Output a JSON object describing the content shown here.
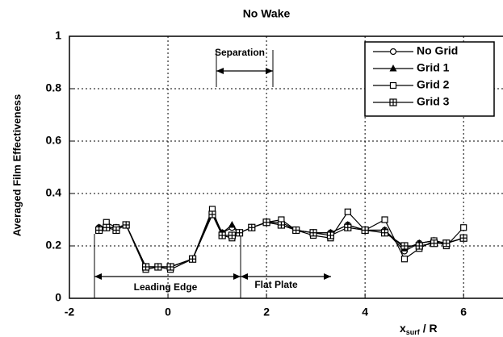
{
  "chart_data": {
    "type": "line",
    "title": "No Wake",
    "ylabel": "Averaged Film Effectiveness",
    "xlabel": {
      "main": "x",
      "sub": "surf",
      "rest": " / R"
    },
    "x": [
      -1.4,
      -1.25,
      -1.05,
      -0.85,
      -0.45,
      -0.2,
      0.05,
      0.5,
      0.9,
      1.1,
      1.3,
      1.45,
      1.7,
      2.0,
      2.3,
      2.6,
      2.95,
      3.3,
      3.65,
      4.0,
      4.4,
      4.8,
      5.1,
      5.4,
      5.65,
      6.0
    ],
    "series": [
      {
        "name": "No Grid",
        "color": "#000000",
        "marker": "circle",
        "values": [
          0.27,
          0.27,
          0.27,
          0.28,
          0.12,
          0.12,
          0.12,
          0.15,
          0.33,
          0.25,
          0.27,
          0.25,
          0.27,
          0.29,
          0.29,
          0.26,
          0.25,
          0.25,
          0.28,
          0.26,
          0.26,
          0.18,
          0.21,
          0.22,
          0.21,
          0.23
        ]
      },
      {
        "name": "Grid 1",
        "color": "#000000",
        "marker": "triangle",
        "values": [
          0.27,
          0.27,
          0.27,
          0.28,
          0.12,
          0.12,
          0.12,
          0.15,
          0.32,
          0.25,
          0.28,
          0.25,
          0.27,
          0.29,
          0.28,
          0.26,
          0.25,
          0.25,
          0.28,
          0.26,
          0.26,
          0.19,
          0.21,
          0.22,
          0.21,
          0.23
        ]
      },
      {
        "name": "Grid 2",
        "color": "#000000",
        "marker": "square",
        "values": [
          0.26,
          0.29,
          0.27,
          0.28,
          0.11,
          0.12,
          0.11,
          0.15,
          0.34,
          0.24,
          0.23,
          0.25,
          0.27,
          0.29,
          0.3,
          0.26,
          0.24,
          0.23,
          0.33,
          0.26,
          0.3,
          0.15,
          0.19,
          0.22,
          0.2,
          0.27
        ]
      },
      {
        "name": "Grid 3",
        "color": "#000000",
        "marker": "gridsquare",
        "values": [
          0.26,
          0.27,
          0.26,
          0.28,
          0.12,
          0.12,
          0.12,
          0.15,
          0.32,
          0.24,
          0.24,
          0.25,
          0.27,
          0.29,
          0.28,
          0.26,
          0.25,
          0.24,
          0.27,
          0.26,
          0.25,
          0.2,
          0.2,
          0.21,
          0.21,
          0.23
        ]
      }
    ],
    "annotations": [
      "Separation",
      "Leading Edge",
      "Flat Plate"
    ],
    "xlim": [
      -2,
      6.8
    ],
    "xticks": [
      -2,
      0,
      2,
      4,
      6
    ],
    "ylim": [
      0,
      1
    ],
    "yticks": [
      0,
      0.2,
      0.4,
      0.6,
      0.8,
      1
    ],
    "grid": true,
    "legend": "upper right"
  }
}
